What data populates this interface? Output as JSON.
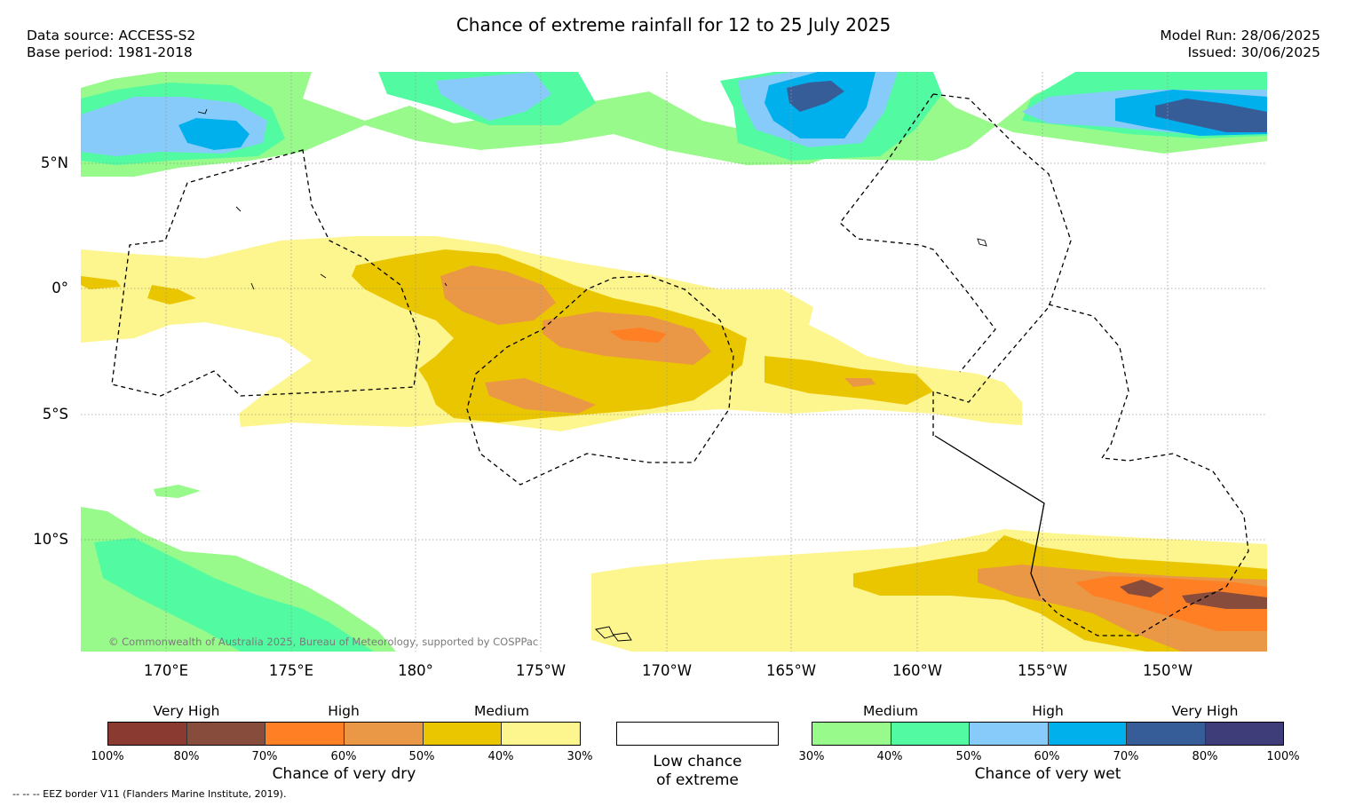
{
  "title": "Chance of extreme rainfall for 12 to 25 July 2025",
  "header_left": [
    "Data source: ACCESS-S2",
    "Base period: 1981-2018"
  ],
  "header_right": [
    "Model Run: 28/06/2025",
    "Issued: 30/06/2025"
  ],
  "lat_labels": [
    "5°N",
    "0°",
    "5°S",
    "10°S"
  ],
  "lon_labels": [
    "170°E",
    "175°E",
    "180°",
    "175°W",
    "170°W",
    "165°W",
    "160°W",
    "155°W",
    "150°W"
  ],
  "copyright": "© Commonwealth of Australia 2025, Bureau of Meteorology, supported by COSPPac",
  "eez_note": "-- -- -- EEZ border V11 (Flanders Marine Institute, 2019).",
  "legend": {
    "dry": {
      "caption": "Chance of very dry",
      "group_labels": [
        "Very High",
        "High",
        "Medium"
      ],
      "ticks": [
        "100%",
        "80%",
        "70%",
        "60%",
        "50%",
        "40%",
        "30%"
      ],
      "colors": [
        "#8b3a32",
        "#874c3b",
        "#ff7f24",
        "#ea9845",
        "#eac600",
        "#fdf58e"
      ]
    },
    "neutral": {
      "caption_line1": "Low chance",
      "caption_line2": "of extreme",
      "color": "#ffffff"
    },
    "wet": {
      "caption": "Chance of very wet",
      "group_labels": [
        "Medium",
        "High",
        "Very High"
      ],
      "ticks": [
        "30%",
        "40%",
        "50%",
        "60%",
        "70%",
        "80%",
        "100%"
      ],
      "colors": [
        "#98fa8a",
        "#52fba1",
        "#87cbfa",
        "#00b0ec",
        "#365d98",
        "#3e3d7a"
      ]
    }
  }
}
